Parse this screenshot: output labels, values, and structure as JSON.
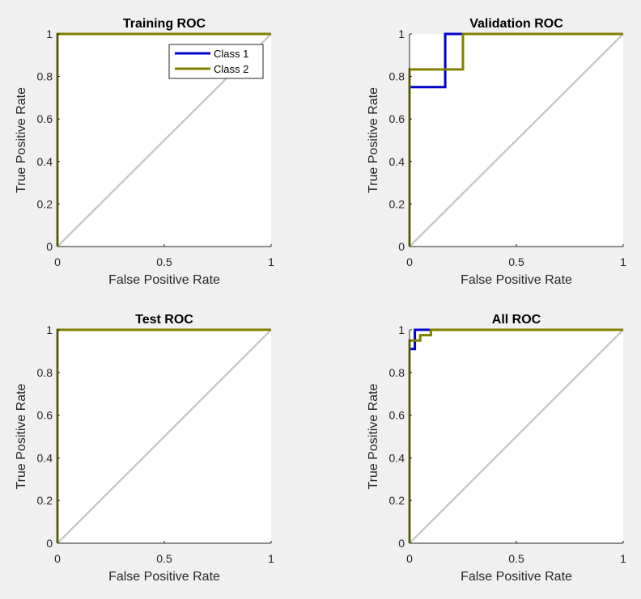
{
  "figure": {
    "background": "#f0f0f0"
  },
  "chart_data": [
    {
      "type": "line",
      "title": "Training ROC",
      "xlabel": "False Positive Rate",
      "ylabel": "True Positive Rate",
      "xlim": [
        0,
        1
      ],
      "ylim": [
        0,
        1
      ],
      "xticks": [
        "0",
        "0.5",
        "1"
      ],
      "yticks": [
        "0",
        "0.2",
        "0.4",
        "0.6",
        "0.8",
        "1"
      ],
      "grid": false,
      "diagonal_reference": true,
      "legend": {
        "placement": "top-right",
        "entries": [
          "Class 1",
          "Class 2"
        ]
      },
      "series": [
        {
          "name": "Class 1",
          "color": "#0000cc",
          "x": [
            0,
            0,
            1
          ],
          "y": [
            0,
            1,
            1
          ]
        },
        {
          "name": "Class 2",
          "color": "#808000",
          "x": [
            0,
            0,
            1
          ],
          "y": [
            0,
            1,
            1
          ]
        }
      ]
    },
    {
      "type": "line",
      "title": "Validation ROC",
      "xlabel": "False Positive Rate",
      "ylabel": "True Positive Rate",
      "xlim": [
        0,
        1
      ],
      "ylim": [
        0,
        1
      ],
      "xticks": [
        "0",
        "0.5",
        "1"
      ],
      "yticks": [
        "0",
        "0.2",
        "0.4",
        "0.6",
        "0.8",
        "1"
      ],
      "grid": false,
      "diagonal_reference": true,
      "series": [
        {
          "color": "#0000cc",
          "x": [
            0,
            0,
            0.167,
            0.167,
            1
          ],
          "y": [
            0,
            0.75,
            0.75,
            1,
            1
          ]
        },
        {
          "color": "#808000",
          "x": [
            0,
            0,
            0.25,
            0.25,
            1
          ],
          "y": [
            0,
            0.833,
            0.833,
            1,
            1
          ]
        }
      ]
    },
    {
      "type": "line",
      "title": "Test ROC",
      "xlabel": "False Positive Rate",
      "ylabel": "True Positive Rate",
      "xlim": [
        0,
        1
      ],
      "ylim": [
        0,
        1
      ],
      "xticks": [
        "0",
        "0.5",
        "1"
      ],
      "yticks": [
        "0",
        "0.2",
        "0.4",
        "0.6",
        "0.8",
        "1"
      ],
      "grid": false,
      "diagonal_reference": true,
      "series": [
        {
          "color": "#0000cc",
          "x": [
            0,
            0,
            1
          ],
          "y": [
            0,
            1,
            1
          ]
        },
        {
          "color": "#808000",
          "x": [
            0,
            0,
            1
          ],
          "y": [
            0,
            1,
            1
          ]
        }
      ]
    },
    {
      "type": "line",
      "title": "All ROC",
      "xlabel": "False Positive Rate",
      "ylabel": "True Positive Rate",
      "xlim": [
        0,
        1
      ],
      "ylim": [
        0,
        1
      ],
      "xticks": [
        "0",
        "0.5",
        "1"
      ],
      "yticks": [
        "0",
        "0.2",
        "0.4",
        "0.6",
        "0.8",
        "1"
      ],
      "grid": false,
      "diagonal_reference": true,
      "series": [
        {
          "color": "#0000cc",
          "x": [
            0,
            0,
            0.025,
            0.025,
            1
          ],
          "y": [
            0,
            0.91,
            0.91,
            1,
            1
          ]
        },
        {
          "color": "#808000",
          "x": [
            0,
            0,
            0.05,
            0.05,
            0.1,
            0.1,
            1
          ],
          "y": [
            0,
            0.95,
            0.95,
            0.975,
            0.975,
            1,
            1
          ]
        }
      ]
    }
  ]
}
